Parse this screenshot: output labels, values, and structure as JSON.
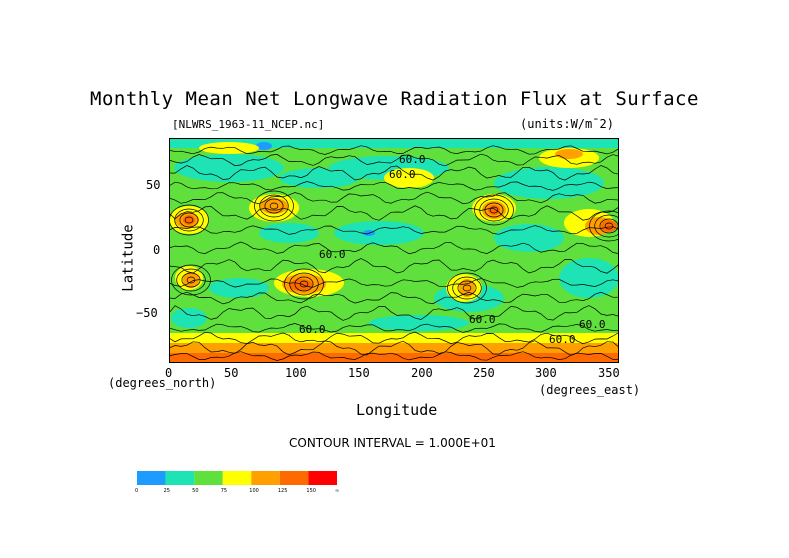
{
  "chart_data": {
    "type": "heatmap",
    "title": "Monthly Mean Net Longwave Radiation Flux at Surface",
    "subtitle_left": "[NLWRS_1963-11_NCEP.nc]",
    "subtitle_right": "(units:W/m^2)",
    "xlabel": "Longitude",
    "ylabel": "Latitude",
    "x_units": "(degrees_east)",
    "y_units": "(degrees_north)",
    "xlim": [
      0,
      357.5
    ],
    "ylim": [
      -90,
      90
    ],
    "x_ticks": [
      "0",
      "50",
      "100",
      "150",
      "200",
      "250",
      "300",
      "350"
    ],
    "y_ticks": [
      "50",
      "0",
      "−50"
    ],
    "contour_interval_text": "CONTOUR INTERVAL = 1.000E+01",
    "contour_labels": [
      "60.0",
      "60.0",
      "60.0",
      "60.0",
      "60.0",
      "60.0",
      "60.0"
    ],
    "colorbar": {
      "levels": [
        "0",
        "25",
        "50",
        "75",
        "100",
        "125",
        "150",
        "∞"
      ],
      "colors": [
        "#1e9bff",
        "#1ee3b4",
        "#5fe03c",
        "#ffff00",
        "#ffa000",
        "#ff6a00",
        "#ff0000"
      ]
    },
    "field_colors": {
      "bg": "#5fe03c",
      "cool": "#1ee3b4",
      "cold": "#1e9bff",
      "warm": "#ffff00",
      "hot": "#ffa000",
      "veryhot": "#ff6a00"
    }
  }
}
